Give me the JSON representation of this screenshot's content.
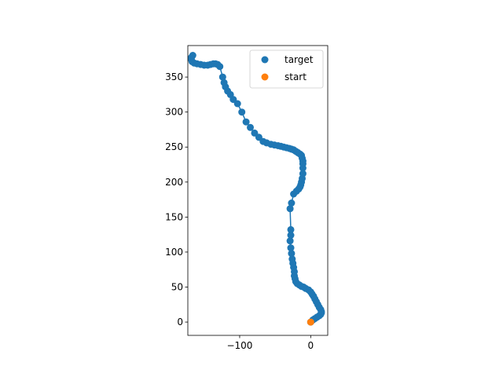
{
  "chart_data": {
    "type": "scatter",
    "title": "",
    "xlabel": "",
    "ylabel": "",
    "xlim": [
      -173,
      24
    ],
    "ylim": [
      -19,
      395
    ],
    "xticks": [
      {
        "value": -100,
        "label": "−100"
      },
      {
        "value": 0,
        "label": "0"
      }
    ],
    "yticks": [
      {
        "value": 0,
        "label": "0"
      },
      {
        "value": 50,
        "label": "50"
      },
      {
        "value": 100,
        "label": "100"
      },
      {
        "value": 150,
        "label": "150"
      },
      {
        "value": 200,
        "label": "200"
      },
      {
        "value": 250,
        "label": "250"
      },
      {
        "value": 300,
        "label": "300"
      },
      {
        "value": 350,
        "label": "350"
      }
    ],
    "grid": false,
    "legend_position": "top-right",
    "series": [
      {
        "name": "target",
        "color": "#1f77b4",
        "connected": true,
        "x": [
          0,
          3,
          6,
          9,
          12,
          14,
          15,
          15,
          14,
          12,
          10,
          8,
          6,
          4,
          2,
          0,
          -3,
          -7,
          -10,
          -13,
          -16,
          -19,
          -21,
          -22,
          -23,
          -23,
          -24,
          -25,
          -26,
          -27,
          -28,
          -29,
          -28,
          -28,
          -29,
          -27,
          -24,
          -20,
          -17,
          -15,
          -14,
          -13,
          -12,
          -11,
          -11,
          -11,
          -11,
          -12,
          -13,
          -15,
          -18,
          -21,
          -24,
          -27,
          -30,
          -34,
          -38,
          -42,
          -46,
          -51,
          -56,
          -62,
          -67,
          -73,
          -79,
          -85,
          -91,
          -97,
          -103,
          -109,
          -113,
          -117,
          -120,
          -122,
          -124,
          -128,
          -131,
          -134,
          -137,
          -141,
          -145,
          -150,
          -155,
          -160,
          -164,
          -167,
          -168,
          -168,
          -166
        ],
        "y": [
          0,
          3,
          5,
          7,
          9,
          11,
          13,
          15,
          18,
          21,
          25,
          29,
          33,
          37,
          40,
          43,
          46,
          48,
          50,
          51,
          53,
          55,
          58,
          62,
          66,
          72,
          78,
          84,
          90,
          98,
          106,
          116,
          124,
          132,
          162,
          170,
          183,
          187,
          190,
          193,
          196,
          200,
          205,
          212,
          220,
          226,
          230,
          234,
          238,
          240,
          242,
          244,
          246,
          247,
          248,
          249,
          250,
          251,
          252,
          253,
          254,
          256,
          258,
          264,
          270,
          278,
          286,
          300,
          312,
          318,
          325,
          330,
          336,
          342,
          350,
          365,
          368,
          369,
          369,
          368,
          367,
          367,
          368,
          369,
          370,
          372,
          375,
          378,
          381
        ]
      },
      {
        "name": "start",
        "color": "#ff7f0e",
        "connected": false,
        "x": [
          0
        ],
        "y": [
          0
        ]
      }
    ]
  }
}
